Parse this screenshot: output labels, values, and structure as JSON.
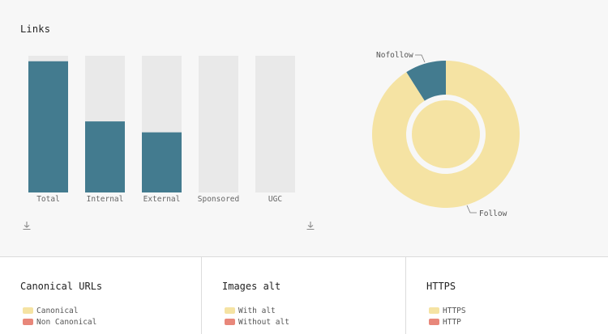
{
  "colors": {
    "bar_fill": "#437b8f",
    "bar_track": "#e9e9e9",
    "donut_follow": "#f5e3a3",
    "donut_nofollow": "#437b8f",
    "legend_yellow": "#f5e3a3",
    "legend_red": "#e8877a"
  },
  "links_panel": {
    "title": "Links",
    "download_icon": "download-icon"
  },
  "chart_data": [
    {
      "type": "bar",
      "title": "",
      "categories": [
        "Total",
        "Internal",
        "External",
        "Sponsored",
        "UGC"
      ],
      "values": [
        96,
        52,
        44,
        0,
        0
      ],
      "ylim": [
        0,
        100
      ],
      "xlabel": "",
      "ylabel": ""
    },
    {
      "type": "pie",
      "title": "",
      "labels": [
        "Nofollow",
        "Follow"
      ],
      "values": [
        9,
        91
      ]
    }
  ],
  "cards": [
    {
      "title": "Canonical URLs",
      "legend": [
        {
          "label": "Canonical",
          "color": "#f5e3a3"
        },
        {
          "label": "Non Canonical",
          "color": "#e8877a"
        }
      ]
    },
    {
      "title": "Images alt",
      "legend": [
        {
          "label": "With alt",
          "color": "#f5e3a3"
        },
        {
          "label": "Without alt",
          "color": "#e8877a"
        }
      ]
    },
    {
      "title": "HTTPS",
      "legend": [
        {
          "label": "HTTPS",
          "color": "#f5e3a3"
        },
        {
          "label": "HTTP",
          "color": "#e8877a"
        }
      ]
    }
  ]
}
